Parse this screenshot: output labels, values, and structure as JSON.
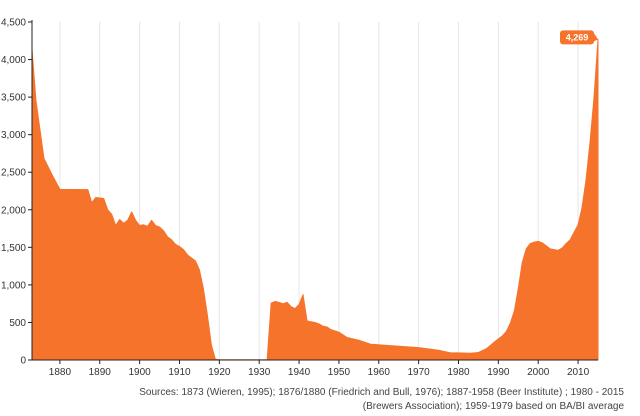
{
  "colors": {
    "area": "#f5732a",
    "grid": "#e6e6e6",
    "axis": "#222222"
  },
  "chart_data": {
    "type": "area",
    "title": "",
    "xlabel": "",
    "ylabel": "",
    "xlim": [
      1873,
      2015
    ],
    "ylim": [
      0,
      4500
    ],
    "x_ticks": [
      1880,
      1890,
      1900,
      1910,
      1920,
      1930,
      1940,
      1950,
      1960,
      1970,
      1980,
      1990,
      2000,
      2010
    ],
    "y_ticks": [
      0,
      500,
      1000,
      1500,
      2000,
      2500,
      3000,
      3500,
      4000,
      4500
    ],
    "y_tick_labels": [
      "0",
      "500",
      "1,000",
      "1,500",
      "2,000",
      "2,500",
      "3,000",
      "3,500",
      "4,000",
      "4,500"
    ],
    "grid": "vertical",
    "legend": "none",
    "series": [
      {
        "points": [
          [
            1873,
            4131
          ],
          [
            1874,
            3450
          ],
          [
            1876,
            2683
          ],
          [
            1878,
            2470
          ],
          [
            1880,
            2272
          ],
          [
            1887,
            2269
          ],
          [
            1888,
            2093
          ],
          [
            1889,
            2164
          ],
          [
            1891,
            2150
          ],
          [
            1892,
            2000
          ],
          [
            1893,
            1940
          ],
          [
            1894,
            1790
          ],
          [
            1895,
            1871
          ],
          [
            1896,
            1820
          ],
          [
            1897,
            1860
          ],
          [
            1898,
            1971
          ],
          [
            1899,
            1860
          ],
          [
            1900,
            1790
          ],
          [
            1901,
            1800
          ],
          [
            1902,
            1780
          ],
          [
            1903,
            1860
          ],
          [
            1904,
            1790
          ],
          [
            1905,
            1770
          ],
          [
            1906,
            1720
          ],
          [
            1907,
            1640
          ],
          [
            1908,
            1600
          ],
          [
            1909,
            1540
          ],
          [
            1910,
            1510
          ],
          [
            1911,
            1470
          ],
          [
            1912,
            1400
          ],
          [
            1913,
            1360
          ],
          [
            1914,
            1320
          ],
          [
            1915,
            1200
          ],
          [
            1916,
            950
          ],
          [
            1917,
            600
          ],
          [
            1918,
            200
          ],
          [
            1919,
            10
          ],
          [
            1920,
            3
          ],
          [
            1932,
            3
          ],
          [
            1933,
            758
          ],
          [
            1934,
            780
          ],
          [
            1935,
            766
          ],
          [
            1936,
            750
          ],
          [
            1937,
            768
          ],
          [
            1938,
            710
          ],
          [
            1939,
            685
          ],
          [
            1940,
            740
          ],
          [
            1941,
            870
          ],
          [
            1942,
            520
          ],
          [
            1943,
            510
          ],
          [
            1944,
            500
          ],
          [
            1945,
            480
          ],
          [
            1946,
            450
          ],
          [
            1947,
            440
          ],
          [
            1948,
            404
          ],
          [
            1950,
            370
          ],
          [
            1952,
            300
          ],
          [
            1955,
            263
          ],
          [
            1958,
            210
          ],
          [
            1962,
            195
          ],
          [
            1966,
            180
          ],
          [
            1970,
            165
          ],
          [
            1975,
            130
          ],
          [
            1978,
            95
          ],
          [
            1980,
            95
          ],
          [
            1983,
            90
          ],
          [
            1985,
            100
          ],
          [
            1987,
            150
          ],
          [
            1989,
            240
          ],
          [
            1991,
            320
          ],
          [
            1992,
            380
          ],
          [
            1993,
            490
          ],
          [
            1994,
            650
          ],
          [
            1995,
            950
          ],
          [
            1996,
            1300
          ],
          [
            1997,
            1480
          ],
          [
            1998,
            1550
          ],
          [
            1999,
            1570
          ],
          [
            2000,
            1580
          ],
          [
            2001,
            1560
          ],
          [
            2002,
            1520
          ],
          [
            2003,
            1480
          ],
          [
            2004,
            1470
          ],
          [
            2005,
            1460
          ],
          [
            2006,
            1490
          ],
          [
            2007,
            1550
          ],
          [
            2008,
            1600
          ],
          [
            2009,
            1700
          ],
          [
            2010,
            1800
          ],
          [
            2011,
            2031
          ],
          [
            2012,
            2400
          ],
          [
            2013,
            2900
          ],
          [
            2014,
            3500
          ],
          [
            2015,
            4269
          ]
        ]
      }
    ],
    "annotations": [
      {
        "x": 2015,
        "y": 4269,
        "label": "4,269"
      }
    ],
    "source": "Sources: 1873 (Wieren, 1995); 1876/1880 (Friedrich and Bull, 1976); 1887-1958 (Beer Institute) ; 1980 - 2015 (Brewers Association); 1959-1979 based on BA/BI average"
  }
}
